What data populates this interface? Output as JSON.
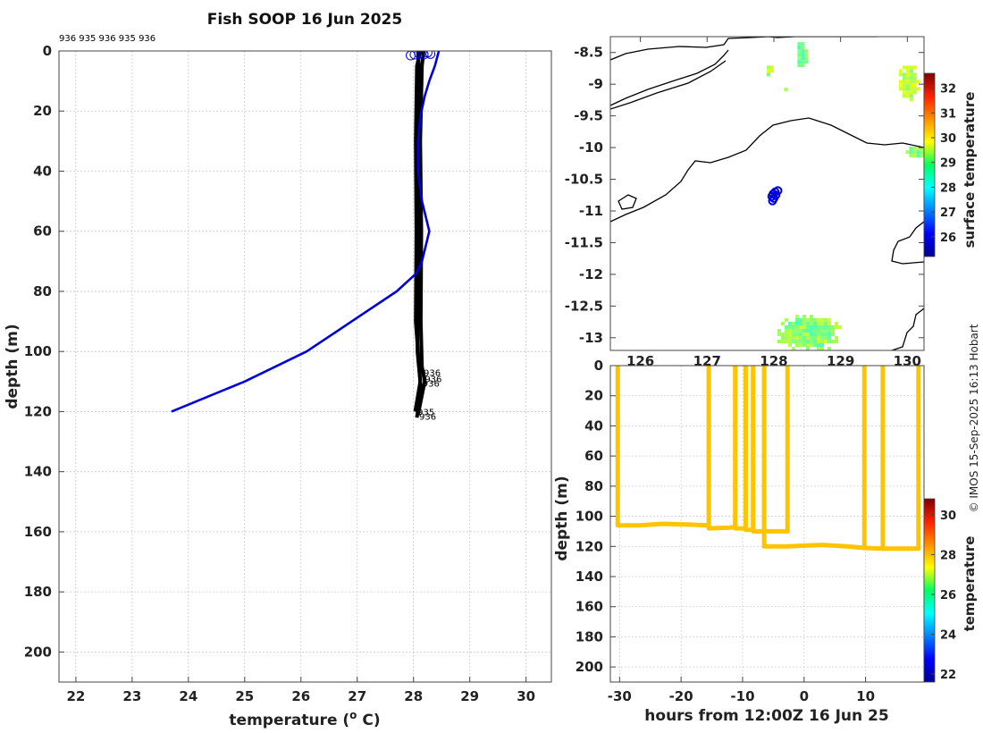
{
  "chart_data": [
    {
      "type": "line",
      "title": "Fish SOOP 16 Jun 2025",
      "xlabel": "temperature (",
      "xlabel_sup": "o",
      "xlabel_tail": " C)",
      "ylabel": "depth (m)",
      "xlim": [
        21.7,
        30.45
      ],
      "ylim": [
        210,
        0
      ],
      "xticks": [
        22,
        23,
        24,
        25,
        26,
        27,
        28,
        29,
        30
      ],
      "yticks": [
        0,
        20,
        40,
        60,
        80,
        100,
        120,
        140,
        160,
        180,
        200
      ],
      "top_annotation": "936 935 936 935 936",
      "series": [
        {
          "color": "#0000dd",
          "points": [
            [
              28.45,
              0
            ],
            [
              28.38,
              5
            ],
            [
              28.28,
              10
            ],
            [
              28.2,
              15
            ],
            [
              28.12,
              22
            ],
            [
              28.08,
              30
            ],
            [
              28.08,
              40
            ],
            [
              28.15,
              50
            ],
            [
              28.28,
              60
            ],
            [
              28.15,
              70
            ],
            [
              28.05,
              74
            ],
            [
              27.7,
              80
            ],
            [
              26.9,
              90
            ],
            [
              26.1,
              100
            ],
            [
              25.0,
              110
            ],
            [
              23.7,
              120
            ]
          ]
        },
        {
          "color": "#000000",
          "points": [
            [
              28.12,
              0
            ],
            [
              28.06,
              5
            ],
            [
              28.04,
              30
            ],
            [
              28.05,
              60
            ],
            [
              28.04,
              90
            ],
            [
              28.1,
              105
            ],
            [
              28.12,
              110
            ],
            [
              28.03,
              120
            ]
          ]
        },
        {
          "color": "#000000",
          "points": [
            [
              28.18,
              0
            ],
            [
              28.15,
              5
            ],
            [
              28.12,
              30
            ],
            [
              28.14,
              60
            ],
            [
              28.13,
              90
            ],
            [
              28.15,
              105
            ],
            [
              28.2,
              110
            ],
            [
              28.08,
              121
            ]
          ]
        },
        {
          "color": "#000000",
          "points": [
            [
              28.08,
              0
            ],
            [
              28.1,
              8
            ],
            [
              28.08,
              40
            ],
            [
              28.09,
              70
            ],
            [
              28.07,
              100
            ],
            [
              28.13,
              112
            ],
            [
              28.06,
              122
            ]
          ]
        }
      ],
      "surface_markers": [
        [
          27.95,
          1.5
        ],
        [
          28.02,
          1.2
        ],
        [
          28.1,
          0.9
        ],
        [
          28.18,
          1.2
        ],
        [
          28.25,
          0.5
        ],
        [
          28.3,
          1.0
        ]
      ],
      "end_labels": [
        {
          "text": "936",
          "x": 28.18,
          "y": 107
        },
        {
          "text": "936",
          "x": 28.2,
          "y": 109
        },
        {
          "text": "936",
          "x": 28.16,
          "y": 110.5
        },
        {
          "text": "935",
          "x": 28.07,
          "y": 120
        },
        {
          "text": "936",
          "x": 28.1,
          "y": 121.5
        }
      ]
    },
    {
      "type": "heatmap",
      "xlim": [
        125.55,
        130.25
      ],
      "ylim": [
        -13.2,
        -8.25
      ],
      "yticks": [
        -8.5,
        -9,
        -9.5,
        -10,
        -10.5,
        -11,
        -11.5,
        -12,
        -12.5,
        -13
      ],
      "xticks": [
        126,
        127,
        128,
        129,
        130
      ],
      "colorbar": {
        "label": "surface temperature",
        "range": [
          25.2,
          32.6
        ],
        "ticks": [
          26,
          27,
          28,
          29,
          30,
          31,
          32
        ]
      },
      "track_points": [
        [
          127.99,
          -10.73
        ],
        [
          128.02,
          -10.7
        ],
        [
          128.06,
          -10.68
        ],
        [
          127.97,
          -10.77
        ],
        [
          128.0,
          -10.8
        ],
        [
          127.98,
          -10.84
        ],
        [
          128.03,
          -10.75
        ]
      ],
      "sst_patches": [
        {
          "cx": 127.9,
          "cy": -8.75,
          "rx": 0.06,
          "ry": 0.1,
          "value": 29.2
        },
        {
          "cx": 128.15,
          "cy": -9.05,
          "rx": 0.05,
          "ry": 0.05,
          "value": 29.0
        },
        {
          "cx": 128.4,
          "cy": -8.5,
          "rx": 0.1,
          "ry": 0.22,
          "value": 28.8
        },
        {
          "cx": 130.0,
          "cy": -8.95,
          "rx": 0.18,
          "ry": 0.3,
          "value": 29.3
        },
        {
          "cx": 130.1,
          "cy": -10.05,
          "rx": 0.18,
          "ry": 0.12,
          "value": 28.9
        },
        {
          "cx": 128.5,
          "cy": -12.9,
          "rx": 0.5,
          "ry": 0.32,
          "value": 29.0
        }
      ]
    },
    {
      "type": "scatter",
      "xlabel": "hours from 12:00Z 16 Jun 25",
      "ylabel": "depth (m)",
      "xlim": [
        -31.5,
        19.5
      ],
      "ylim": [
        210,
        0
      ],
      "xticks": [
        -30,
        -20,
        -10,
        0,
        10
      ],
      "yticks": [
        0,
        20,
        40,
        60,
        80,
        100,
        120,
        140,
        160,
        180,
        200
      ],
      "colorbar": {
        "label": "temperature",
        "range": [
          21.6,
          30.8
        ],
        "ticks": [
          22,
          24,
          26,
          28,
          30
        ]
      },
      "trace_value": 28.3,
      "profile_times": [
        -30.3,
        -15.5,
        -11.2,
        -9.5,
        -8.3,
        -6.5,
        -2.7,
        9.8,
        12.8,
        18.6
      ],
      "bottom_path": [
        [
          -30.3,
          106
        ],
        [
          -27,
          106
        ],
        [
          -23,
          105
        ],
        [
          -19,
          105.5
        ],
        [
          -15.5,
          106
        ],
        [
          -15.5,
          108
        ],
        [
          -12,
          107.5
        ],
        [
          -11.2,
          107
        ],
        [
          -11.2,
          108
        ],
        [
          -9.5,
          108
        ],
        [
          -9.5,
          109
        ],
        [
          -8.3,
          109
        ],
        [
          -8.3,
          110
        ],
        [
          -6.5,
          110
        ],
        [
          -2.7,
          110
        ],
        [
          -6.5,
          110
        ],
        [
          -6.5,
          120
        ],
        [
          -3,
          120
        ],
        [
          0,
          119.5
        ],
        [
          3,
          119
        ],
        [
          7,
          120
        ],
        [
          9.8,
          121
        ],
        [
          12.8,
          121.5
        ],
        [
          18.6,
          121.5
        ]
      ]
    }
  ],
  "credit": "© IMOS 15-Sep-2025 16:13 Hobart"
}
